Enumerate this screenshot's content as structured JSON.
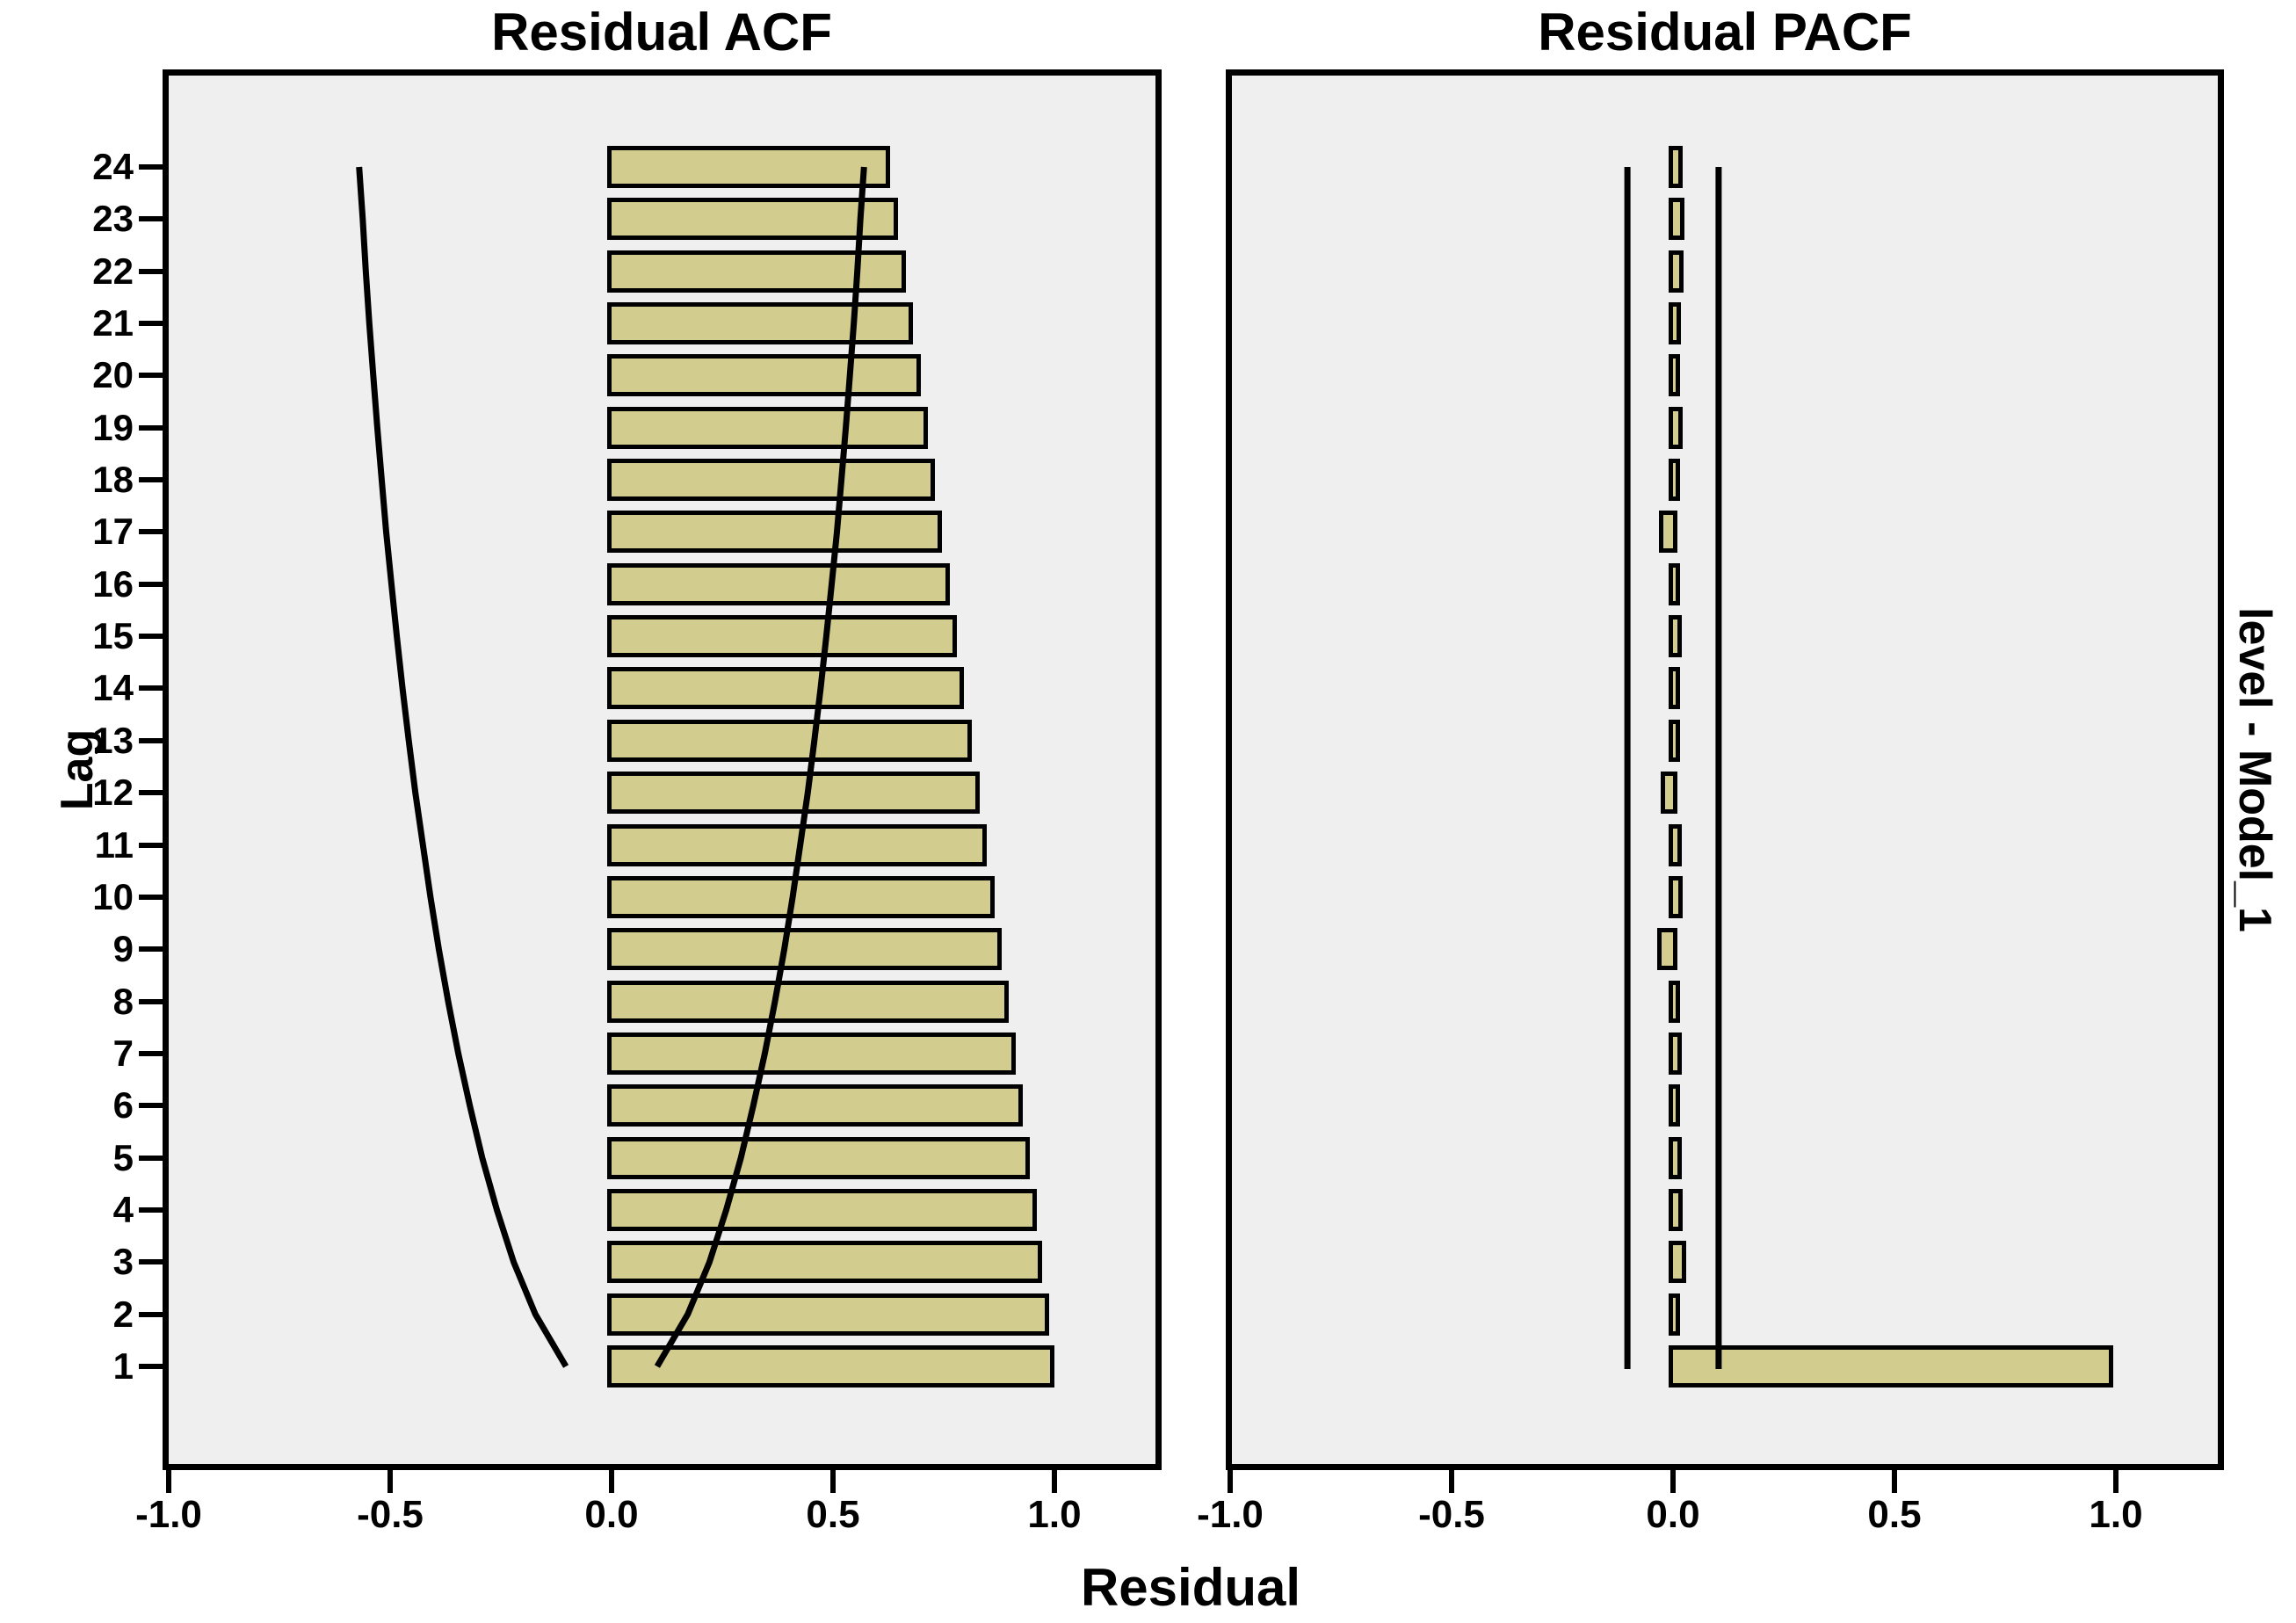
{
  "figure": {
    "title_acf": "Residual ACF",
    "title_pacf": "Residual PACF",
    "xlabel": "Residual",
    "ylabel": "Lag",
    "panel_label": "level - Model_1",
    "colors": {
      "bar_fill": "#D2CC8F",
      "panel_bg": "#EFEFEF",
      "line": "#000000",
      "background": "#FFFFFF"
    }
  },
  "axes": {
    "x_tick_labels": [
      "-1.0",
      "-0.5",
      "0.0",
      "0.5",
      "1.0"
    ],
    "x_tick_values": [
      -1.0,
      -0.5,
      0.0,
      0.5,
      1.0
    ],
    "lag_labels": [
      "24",
      "23",
      "22",
      "21",
      "20",
      "19",
      "18",
      "17",
      "16",
      "15",
      "14",
      "13",
      "12",
      "11",
      "10",
      "9",
      "8",
      "7",
      "6",
      "5",
      "4",
      "3",
      "2",
      "1"
    ]
  },
  "chart_data": [
    {
      "type": "bar",
      "orientation": "horizontal",
      "title": "Residual ACF",
      "xlabel": "Residual",
      "ylabel": "Lag",
      "xlim": [
        -1.0,
        1.23
      ],
      "categories": [
        1,
        2,
        3,
        4,
        5,
        6,
        7,
        8,
        9,
        10,
        11,
        12,
        13,
        14,
        15,
        16,
        17,
        18,
        19,
        20,
        21,
        22,
        23,
        24
      ],
      "values": [
        0.99,
        0.978,
        0.962,
        0.95,
        0.934,
        0.918,
        0.903,
        0.887,
        0.871,
        0.856,
        0.838,
        0.821,
        0.804,
        0.786,
        0.769,
        0.753,
        0.737,
        0.72,
        0.704,
        0.688,
        0.671,
        0.654,
        0.637,
        0.62
      ],
      "confidence_bounds": [
        0.103,
        0.172,
        0.221,
        0.259,
        0.292,
        0.32,
        0.346,
        0.369,
        0.39,
        0.409,
        0.426,
        0.443,
        0.458,
        0.472,
        0.485,
        0.497,
        0.509,
        0.519,
        0.529,
        0.538,
        0.547,
        0.555,
        0.562,
        0.57
      ],
      "confidence_symmetric": true,
      "confidence_style": "curved"
    },
    {
      "type": "bar",
      "orientation": "horizontal",
      "title": "Residual PACF",
      "xlabel": "Residual",
      "ylabel": "Lag",
      "xlim": [
        -1.0,
        1.23
      ],
      "categories": [
        1,
        2,
        3,
        4,
        5,
        6,
        7,
        8,
        9,
        10,
        11,
        12,
        13,
        14,
        15,
        16,
        17,
        18,
        19,
        20,
        21,
        22,
        23,
        24
      ],
      "values": [
        0.985,
        0.005,
        0.02,
        0.012,
        0.01,
        0.005,
        0.01,
        0.006,
        -0.025,
        0.012,
        0.01,
        -0.018,
        0.006,
        0.005,
        0.01,
        0.006,
        -0.022,
        0.005,
        0.012,
        0.005,
        0.008,
        0.014,
        0.015,
        0.012
      ],
      "confidence_bound": 0.103,
      "confidence_symmetric": true,
      "confidence_style": "straight"
    }
  ]
}
